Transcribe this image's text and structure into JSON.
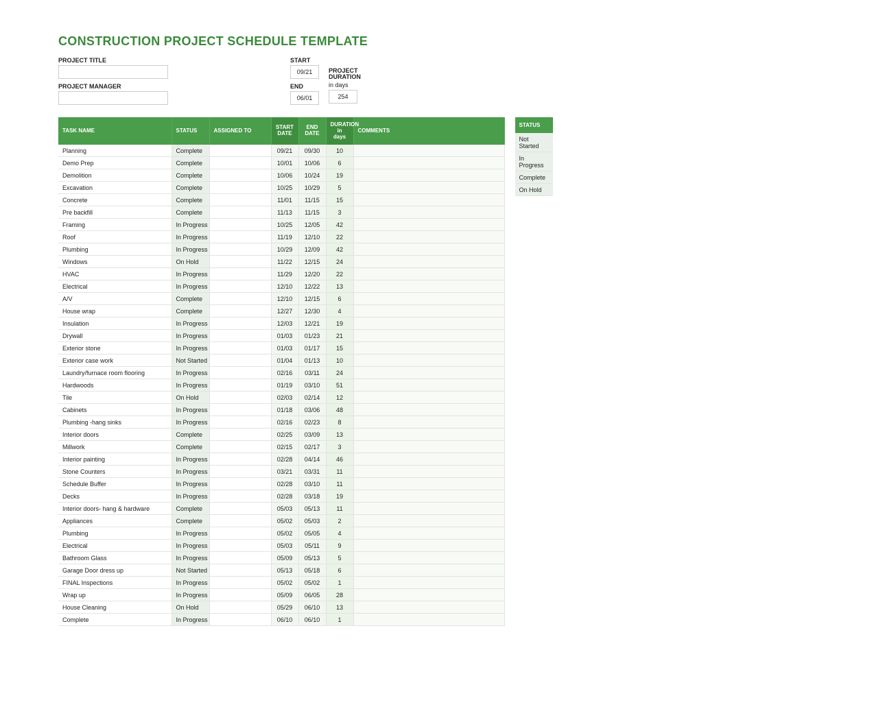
{
  "title": "CONSTRUCTION PROJECT SCHEDULE TEMPLATE",
  "colors": {
    "title": "#3b8a3b",
    "header_bg": "#4a9d4a",
    "header_bg_sort": "#3f8e3f",
    "header_fg": "#ffffff",
    "status_bg": "#e9efe9",
    "date_bg": "#f2f6f0",
    "dur_bg": "#eaf3e6",
    "comments_bg": "#f8faf5",
    "border": "#e3e3e3"
  },
  "meta": {
    "project_title_label": "PROJECT TITLE",
    "project_title_value": "",
    "project_manager_label": "PROJECT MANAGER",
    "project_manager_value": "",
    "start_label": "START",
    "start_value": "09/21",
    "end_label": "END",
    "end_value": "06/01",
    "duration_label1": "PROJECT",
    "duration_label2": "DURATION",
    "duration_unit": "in days",
    "duration_value": "254"
  },
  "columns": {
    "task": "TASK NAME",
    "status": "STATUS",
    "assigned": "ASSIGNED TO",
    "start": "START DATE",
    "end": "END DATE",
    "duration": "DURATION in days",
    "comments": "COMMENTS"
  },
  "rows": [
    {
      "task": "Planning",
      "status": "Complete",
      "assigned": "",
      "start": "09/21",
      "end": "09/30",
      "dur": "10",
      "comments": ""
    },
    {
      "task": "Demo Prep",
      "status": "Complete",
      "assigned": "",
      "start": "10/01",
      "end": "10/06",
      "dur": "6",
      "comments": ""
    },
    {
      "task": "Demolition",
      "status": "Complete",
      "assigned": "",
      "start": "10/06",
      "end": "10/24",
      "dur": "19",
      "comments": ""
    },
    {
      "task": "Excavation",
      "status": "Complete",
      "assigned": "",
      "start": "10/25",
      "end": "10/29",
      "dur": "5",
      "comments": ""
    },
    {
      "task": "Concrete",
      "status": "Complete",
      "assigned": "",
      "start": "11/01",
      "end": "11/15",
      "dur": "15",
      "comments": ""
    },
    {
      "task": "Pre backfill",
      "status": "Complete",
      "assigned": "",
      "start": "11/13",
      "end": "11/15",
      "dur": "3",
      "comments": ""
    },
    {
      "task": "Framing",
      "status": "In Progress",
      "assigned": "",
      "start": "10/25",
      "end": "12/05",
      "dur": "42",
      "comments": ""
    },
    {
      "task": "Roof",
      "status": "In Progress",
      "assigned": "",
      "start": "11/19",
      "end": "12/10",
      "dur": "22",
      "comments": ""
    },
    {
      "task": "Plumbing",
      "status": "In Progress",
      "assigned": "",
      "start": "10/29",
      "end": "12/09",
      "dur": "42",
      "comments": ""
    },
    {
      "task": "Windows",
      "status": "On Hold",
      "assigned": "",
      "start": "11/22",
      "end": "12/15",
      "dur": "24",
      "comments": ""
    },
    {
      "task": "HVAC",
      "status": "In Progress",
      "assigned": "",
      "start": "11/29",
      "end": "12/20",
      "dur": "22",
      "comments": ""
    },
    {
      "task": "Electrical",
      "status": "In Progress",
      "assigned": "",
      "start": "12/10",
      "end": "12/22",
      "dur": "13",
      "comments": ""
    },
    {
      "task": "A/V",
      "status": "Complete",
      "assigned": "",
      "start": "12/10",
      "end": "12/15",
      "dur": "6",
      "comments": ""
    },
    {
      "task": "House wrap",
      "status": "Complete",
      "assigned": "",
      "start": "12/27",
      "end": "12/30",
      "dur": "4",
      "comments": ""
    },
    {
      "task": "Insulation",
      "status": "In Progress",
      "assigned": "",
      "start": "12/03",
      "end": "12/21",
      "dur": "19",
      "comments": ""
    },
    {
      "task": "Drywall",
      "status": "In Progress",
      "assigned": "",
      "start": "01/03",
      "end": "01/23",
      "dur": "21",
      "comments": ""
    },
    {
      "task": "Exterior stone",
      "status": "In Progress",
      "assigned": "",
      "start": "01/03",
      "end": "01/17",
      "dur": "15",
      "comments": ""
    },
    {
      "task": "Exterior case work",
      "status": "Not Started",
      "assigned": "",
      "start": "01/04",
      "end": "01/13",
      "dur": "10",
      "comments": ""
    },
    {
      "task": "Laundry/furnace room flooring",
      "status": "In Progress",
      "assigned": "",
      "start": "02/16",
      "end": "03/11",
      "dur": "24",
      "comments": ""
    },
    {
      "task": "Hardwoods",
      "status": "In Progress",
      "assigned": "",
      "start": "01/19",
      "end": "03/10",
      "dur": "51",
      "comments": ""
    },
    {
      "task": "Tile",
      "status": "On Hold",
      "assigned": "",
      "start": "02/03",
      "end": "02/14",
      "dur": "12",
      "comments": ""
    },
    {
      "task": "Cabinets",
      "status": "In Progress",
      "assigned": "",
      "start": "01/18",
      "end": "03/06",
      "dur": "48",
      "comments": ""
    },
    {
      "task": "Plumbing -hang sinks",
      "status": "In Progress",
      "assigned": "",
      "start": "02/16",
      "end": "02/23",
      "dur": "8",
      "comments": ""
    },
    {
      "task": "Interior doors",
      "status": "Complete",
      "assigned": "",
      "start": "02/25",
      "end": "03/09",
      "dur": "13",
      "comments": ""
    },
    {
      "task": "Millwork",
      "status": "Complete",
      "assigned": "",
      "start": "02/15",
      "end": "02/17",
      "dur": "3",
      "comments": ""
    },
    {
      "task": "Interior painting",
      "status": "In Progress",
      "assigned": "",
      "start": "02/28",
      "end": "04/14",
      "dur": "46",
      "comments": ""
    },
    {
      "task": "Stone Counters",
      "status": "In Progress",
      "assigned": "",
      "start": "03/21",
      "end": "03/31",
      "dur": "11",
      "comments": ""
    },
    {
      "task": "Schedule Buffer",
      "status": "In Progress",
      "assigned": "",
      "start": "02/28",
      "end": "03/10",
      "dur": "11",
      "comments": ""
    },
    {
      "task": "Decks",
      "status": "In Progress",
      "assigned": "",
      "start": "02/28",
      "end": "03/18",
      "dur": "19",
      "comments": ""
    },
    {
      "task": "Interior doors- hang & hardware",
      "status": "Complete",
      "assigned": "",
      "start": "05/03",
      "end": "05/13",
      "dur": "11",
      "comments": ""
    },
    {
      "task": "Appliances",
      "status": "Complete",
      "assigned": "",
      "start": "05/02",
      "end": "05/03",
      "dur": "2",
      "comments": ""
    },
    {
      "task": "Plumbing",
      "status": "In Progress",
      "assigned": "",
      "start": "05/02",
      "end": "05/05",
      "dur": "4",
      "comments": ""
    },
    {
      "task": "Electrical",
      "status": "In Progress",
      "assigned": "",
      "start": "05/03",
      "end": "05/11",
      "dur": "9",
      "comments": ""
    },
    {
      "task": "Bathroom Glass",
      "status": "In Progress",
      "assigned": "",
      "start": "05/09",
      "end": "05/13",
      "dur": "5",
      "comments": ""
    },
    {
      "task": "Garage Door dress up",
      "status": "Not Started",
      "assigned": "",
      "start": "05/13",
      "end": "05/18",
      "dur": "6",
      "comments": ""
    },
    {
      "task": "FINAL Inspections",
      "status": "In Progress",
      "assigned": "",
      "start": "05/02",
      "end": "05/02",
      "dur": "1",
      "comments": ""
    },
    {
      "task": "Wrap up",
      "status": "In Progress",
      "assigned": "",
      "start": "05/09",
      "end": "06/05",
      "dur": "28",
      "comments": ""
    },
    {
      "task": "House Cleaning",
      "status": "On Hold",
      "assigned": "",
      "start": "05/29",
      "end": "06/10",
      "dur": "13",
      "comments": ""
    },
    {
      "task": "Complete",
      "status": "In Progress",
      "assigned": "",
      "start": "06/10",
      "end": "06/10",
      "dur": "1",
      "comments": ""
    }
  ],
  "legend": {
    "header": "STATUS",
    "values": [
      "Not Started",
      "In Progress",
      "Complete",
      "On Hold"
    ]
  }
}
